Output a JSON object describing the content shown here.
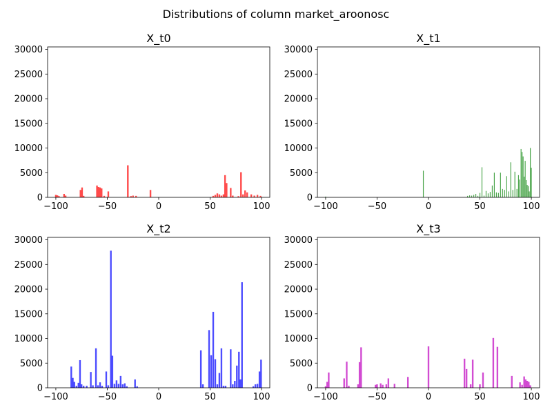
{
  "figure": {
    "suptitle": "Distributions of column market_aroonosc"
  },
  "chart_data": [
    {
      "type": "bar",
      "title": "X_t0",
      "color": "#ff0000",
      "xlim": [
        -108,
        108
      ],
      "ylim": [
        0,
        30500
      ],
      "xticks": [
        -100,
        -50,
        0,
        50,
        100
      ],
      "yticks": [
        0,
        5000,
        10000,
        15000,
        20000,
        25000,
        30000
      ],
      "bin_width": 1.6,
      "x": [
        -100,
        -98.5,
        -97,
        -92,
        -90.5,
        -76,
        -74.5,
        -73,
        -60,
        -58.5,
        -57,
        -55.5,
        -53,
        -49,
        -30,
        -27,
        -25,
        -22,
        -8,
        53,
        55,
        57,
        59,
        61,
        63,
        64.5,
        66,
        70,
        72,
        77.5,
        80,
        82,
        84,
        86,
        90,
        93,
        96,
        99
      ],
      "values": [
        500,
        400,
        250,
        700,
        350,
        1500,
        2000,
        300,
        2400,
        2100,
        2000,
        1800,
        300,
        1200,
        6500,
        250,
        350,
        300,
        1500,
        300,
        500,
        800,
        600,
        350,
        600,
        4500,
        2900,
        1900,
        350,
        250,
        5100,
        600,
        1400,
        1000,
        600,
        350,
        500,
        300
      ]
    },
    {
      "type": "bar",
      "title": "X_t1",
      "color": "#008000",
      "xlim": [
        -108,
        108
      ],
      "ylim": [
        0,
        30500
      ],
      "xticks": [
        -100,
        -50,
        0,
        50,
        100
      ],
      "yticks": [
        0,
        5000,
        10000,
        15000,
        20000,
        25000,
        30000
      ],
      "bin_width": 0.8,
      "x": [
        -100,
        -5,
        38,
        40,
        42,
        44,
        46,
        48,
        50,
        52,
        54,
        56,
        58,
        60,
        62,
        64,
        66,
        68,
        70,
        72,
        74,
        76,
        78,
        80,
        82,
        84,
        86,
        87.5,
        88.5,
        90,
        91,
        92,
        93,
        94,
        95,
        96,
        97,
        98,
        99,
        100
      ],
      "values": [
        150,
        5400,
        300,
        400,
        350,
        500,
        700,
        300,
        900,
        6100,
        350,
        1300,
        800,
        1100,
        2400,
        5000,
        1000,
        900,
        5000,
        1700,
        1500,
        4300,
        1200,
        7100,
        1500,
        5200,
        1700,
        4500,
        3600,
        9800,
        9200,
        8300,
        4200,
        7400,
        3500,
        2500,
        2300,
        1200,
        10000,
        6000
      ]
    },
    {
      "type": "bar",
      "title": "X_t2",
      "color": "#0000ff",
      "xlim": [
        -108,
        108
      ],
      "ylim": [
        0,
        30500
      ],
      "xticks": [
        -100,
        -50,
        0,
        50,
        100
      ],
      "yticks": [
        0,
        5000,
        10000,
        15000,
        20000,
        25000,
        30000
      ],
      "bin_width": 1.6,
      "x": [
        -85,
        -83.5,
        -82,
        -80,
        -78,
        -76.5,
        -75,
        -73,
        -70,
        -66,
        -64,
        -61,
        -59,
        -57,
        -55,
        -51,
        -49,
        -46.5,
        -45,
        -43,
        -41,
        -39,
        -37,
        -35,
        -33,
        -31,
        -23,
        -21,
        41,
        43,
        49,
        51,
        53,
        55,
        57,
        59,
        61,
        63,
        65,
        70,
        72,
        74,
        76,
        78,
        79.5,
        81,
        92,
        94,
        96,
        98,
        99.5
      ],
      "values": [
        4300,
        2000,
        1200,
        400,
        1000,
        5600,
        700,
        400,
        400,
        3200,
        500,
        8000,
        500,
        1100,
        400,
        3300,
        500,
        27800,
        6500,
        800,
        1500,
        800,
        2400,
        700,
        900,
        300,
        1700,
        300,
        7600,
        700,
        11700,
        6600,
        15400,
        5800,
        700,
        3000,
        8000,
        400,
        400,
        7800,
        700,
        1400,
        4500,
        7300,
        1700,
        21400,
        300,
        700,
        800,
        3300,
        5700
      ]
    },
    {
      "type": "bar",
      "title": "X_t3",
      "color": "#bf00bf",
      "xlim": [
        -108,
        108
      ],
      "ylim": [
        0,
        30500
      ],
      "xticks": [
        -100,
        -50,
        0,
        50,
        100
      ],
      "yticks": [
        0,
        5000,
        10000,
        15000,
        20000,
        25000,
        30000
      ],
      "bin_width": 1.6,
      "x": [
        -100,
        -98.5,
        -97,
        -82,
        -79.5,
        -77.5,
        -68.5,
        -67,
        -65.5,
        -51.5,
        -50,
        -46.5,
        -44.5,
        -41,
        -39,
        -33,
        -20,
        0,
        35,
        37,
        41,
        43,
        50,
        53,
        63,
        67,
        81,
        89,
        91,
        93,
        94.5,
        96,
        97.5,
        99
      ],
      "values": [
        300,
        1200,
        3100,
        1900,
        5300,
        400,
        700,
        5200,
        8200,
        600,
        700,
        900,
        600,
        700,
        1900,
        800,
        2200,
        8400,
        5900,
        3800,
        700,
        5700,
        700,
        3100,
        10100,
        8300,
        2400,
        1100,
        600,
        2300,
        1700,
        1400,
        1200,
        500
      ]
    }
  ]
}
